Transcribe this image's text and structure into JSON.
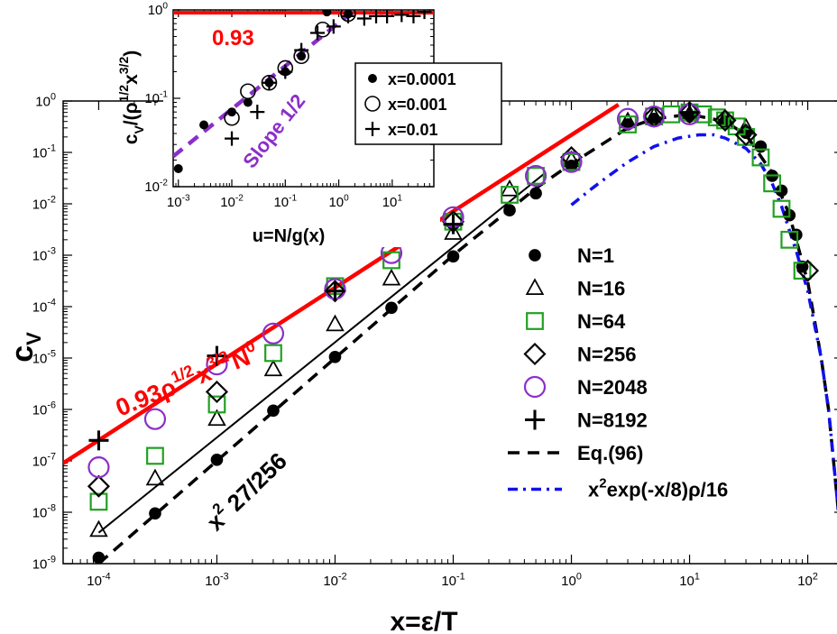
{
  "chart_data": [
    {
      "type": "scatter",
      "xscale": "log",
      "yscale": "log",
      "xlim": [
        5e-05,
        200
      ],
      "ylim": [
        1e-09,
        1
      ],
      "xlabel": "x=ε/T",
      "ylabel": "c",
      "ylabel_sub": "V",
      "xtick_exponents": [
        "-4",
        "-3",
        "-2",
        "-1",
        "0",
        "1",
        "2"
      ],
      "ytick_exponents": [
        "-9",
        "-8",
        "-7",
        "-6",
        "-5",
        "-4",
        "-3",
        "-2",
        "-1",
        "0"
      ],
      "series": [
        {
          "name": "N=1",
          "marker": "filled-circle",
          "color": "#000000",
          "points": [
            [
              0.0001,
              1.3e-09
            ],
            [
              0.0003,
              9.5e-09
            ],
            [
              0.001,
              1.05e-07
            ],
            [
              0.003,
              9.5e-07
            ],
            [
              0.01,
              1.05e-05
            ],
            [
              0.03,
              9.5e-05
            ],
            [
              0.1,
              0.00095
            ],
            [
              0.3,
              0.0075
            ],
            [
              0.5,
              0.016
            ],
            [
              1,
              0.055
            ],
            [
              3,
              0.35
            ],
            [
              5,
              0.45
            ],
            [
              10,
              0.5
            ],
            [
              20,
              0.4
            ],
            [
              30,
              0.24
            ],
            [
              40,
              0.13
            ],
            [
              50,
              0.035
            ],
            [
              60,
              0.018
            ],
            [
              70,
              0.006
            ],
            [
              80,
              0.0025
            ],
            [
              90,
              0.0006
            ]
          ]
        },
        {
          "name": "N=16",
          "marker": "triangle",
          "color": "#000000",
          "points": [
            [
              0.0001,
              4.5e-09
            ],
            [
              0.0003,
              4.5e-08
            ],
            [
              0.001,
              6.5e-07
            ],
            [
              0.003,
              6e-06
            ],
            [
              0.01,
              4.5e-05
            ],
            [
              0.03,
              0.00035
            ],
            [
              0.1,
              0.0027
            ],
            [
              0.3,
              0.019
            ],
            [
              1,
              0.07
            ],
            [
              3,
              0.4
            ],
            [
              5,
              0.5
            ],
            [
              10,
              0.55
            ],
            [
              20,
              0.45
            ],
            [
              30,
              0.3
            ]
          ]
        },
        {
          "name": "N=64",
          "marker": "square",
          "color": "#22a022",
          "points": [
            [
              0.0001,
              1.6e-08
            ],
            [
              0.0003,
              1.25e-07
            ],
            [
              0.001,
              1.25e-06
            ],
            [
              0.003,
              1.25e-05
            ],
            [
              0.01,
              0.00025
            ],
            [
              0.03,
              0.0008
            ],
            [
              0.1,
              0.0045
            ],
            [
              0.3,
              0.015
            ],
            [
              0.5,
              0.035
            ],
            [
              1,
              0.065
            ],
            [
              3,
              0.35
            ],
            [
              5,
              0.5
            ],
            [
              7,
              0.55
            ],
            [
              10,
              0.6
            ],
            [
              13,
              0.55
            ],
            [
              17,
              0.48
            ],
            [
              20,
              0.42
            ],
            [
              25,
              0.32
            ],
            [
              30,
              0.2
            ],
            [
              40,
              0.08
            ],
            [
              50,
              0.025
            ],
            [
              60,
              0.008
            ],
            [
              70,
              0.002
            ],
            [
              90,
              0.0005
            ]
          ]
        },
        {
          "name": "N=256",
          "marker": "diamond",
          "color": "#000000",
          "points": [
            [
              0.0001,
              3.2e-08
            ],
            [
              0.001,
              2.2e-06
            ],
            [
              0.01,
              0.0002
            ],
            [
              0.1,
              0.0045
            ],
            [
              1,
              0.08
            ],
            [
              5,
              0.5
            ],
            [
              10,
              0.6
            ],
            [
              20,
              0.42
            ],
            [
              30,
              0.22
            ],
            [
              100,
              0.0005
            ]
          ]
        },
        {
          "name": "N=2048",
          "marker": "circle",
          "color": "#8b2fc9",
          "points": [
            [
              0.0001,
              7.5e-08
            ],
            [
              0.0003,
              6.5e-07
            ],
            [
              0.001,
              7.5e-06
            ],
            [
              0.003,
              3e-05
            ],
            [
              0.01,
              0.00022
            ],
            [
              0.03,
              0.0011
            ],
            [
              0.1,
              0.0055
            ],
            [
              0.5,
              0.035
            ],
            [
              1,
              0.065
            ],
            [
              3,
              0.45
            ],
            [
              5,
              0.5
            ],
            [
              10,
              0.55
            ]
          ]
        },
        {
          "name": "N=8192",
          "marker": "plus",
          "color": "#000000",
          "points": [
            [
              0.0001,
              2.5e-07
            ],
            [
              0.001,
              1.1e-05
            ],
            [
              0.01,
              0.0002
            ],
            [
              0.1,
              0.004
            ],
            [
              10,
              0.6
            ]
          ]
        }
      ],
      "lines": [
        {
          "name": "0.93ρ^{1/2}x^{3/2}N^0 fit",
          "color": "#ff0000",
          "style": "solid",
          "points": [
            [
              5e-05,
              9e-08
            ],
            [
              2.5,
              0.85
            ]
          ]
        },
        {
          "name": "x^2 27/256",
          "color": "#000000",
          "style": "solid",
          "points": [
            [
              0.0001,
              4e-09
            ],
            [
              0.6,
              0.04
            ]
          ]
        },
        {
          "name": "Eq.(96)",
          "color": "#000000",
          "style": "dashed",
          "points": [
            [
              0.0001,
              1e-09
            ],
            [
              0.001,
              1e-07
            ],
            [
              0.01,
              1e-05
            ],
            [
              0.1,
              0.001
            ],
            [
              0.5,
              0.02
            ],
            [
              1,
              0.06
            ],
            [
              3,
              0.3
            ],
            [
              5,
              0.45
            ],
            [
              10,
              0.55
            ],
            [
              20,
              0.4
            ],
            [
              30,
              0.22
            ],
            [
              50,
              0.04
            ],
            [
              70,
              0.006
            ],
            [
              100,
              0.0003
            ],
            [
              130,
              1e-05
            ],
            [
              150,
              1e-06
            ],
            [
              170,
              5e-08
            ],
            [
              200,
              1e-09
            ]
          ]
        },
        {
          "name": "x^2exp(-x/8)ρ/16",
          "color": "#1010ee",
          "style": "dashdot",
          "points": [
            [
              1,
              0.0095
            ],
            [
              1.5,
              0.02
            ],
            [
              2,
              0.033
            ],
            [
              3,
              0.065
            ],
            [
              5,
              0.13
            ],
            [
              8,
              0.19
            ],
            [
              12,
              0.22
            ],
            [
              16,
              0.22
            ],
            [
              20,
              0.19
            ],
            [
              30,
              0.12
            ],
            [
              40,
              0.06
            ],
            [
              50,
              0.025
            ],
            [
              60,
              0.009
            ],
            [
              70,
              0.003
            ],
            [
              80,
              0.0012
            ],
            [
              100,
              0.0002
            ],
            [
              130,
              1e-05
            ],
            [
              150,
              1e-06
            ],
            [
              170,
              5e-08
            ],
            [
              200,
              1e-09
            ]
          ]
        }
      ],
      "annotations": {
        "fit_label": {
          "main": "0.93ρ",
          "s1": "1/2",
          "x": "x",
          "s2": "3/2",
          "n": "N",
          "s3": "0"
        },
        "slope_label": {
          "x": "x",
          "exp": "2",
          "rest": " 27/256"
        }
      },
      "legend": {
        "position": "bottom-right",
        "entries": [
          "N=1",
          "N=16",
          "N=64",
          "N=256",
          "N=2048",
          "N=8192",
          "Eq.(96)"
        ],
        "last_entry": {
          "pre": "x",
          "sup": "2",
          "post": "exp(-x/8)ρ/16"
        }
      }
    },
    {
      "type": "scatter",
      "role": "inset",
      "xscale": "log",
      "yscale": "log",
      "xlim": [
        0.0008,
        60
      ],
      "ylim": [
        0.01,
        1.0
      ],
      "xlabel": "u=N/g(x)",
      "ylabel": {
        "pre": "c",
        "sub": "V",
        "mid": "/(ρ",
        "s1": "1/2",
        "x": "x",
        "s2": "3/2",
        "post": ")"
      },
      "xtick_exponents": [
        "-3",
        "-2",
        "-1",
        "0",
        "1"
      ],
      "ytick_exponents": [
        "-2",
        "-1",
        "0"
      ],
      "series": [
        {
          "name": "x=0.0001",
          "marker": "filled-circle",
          "points": [
            [
              0.001,
              0.016
            ],
            [
              0.003,
              0.05
            ],
            [
              0.01,
              0.07
            ],
            [
              0.02,
              0.09
            ],
            [
              0.05,
              0.15
            ],
            [
              0.1,
              0.2
            ],
            [
              0.2,
              0.3
            ],
            [
              0.6,
              0.95
            ],
            [
              1.5,
              0.9
            ]
          ]
        },
        {
          "name": "x=0.001",
          "marker": "circle",
          "points": [
            [
              0.01,
              0.06
            ],
            [
              0.02,
              0.12
            ],
            [
              0.05,
              0.15
            ],
            [
              0.1,
              0.22
            ],
            [
              0.2,
              0.3
            ],
            [
              0.5,
              0.6
            ],
            [
              1.5,
              0.9
            ]
          ]
        },
        {
          "name": "x=0.01",
          "marker": "plus",
          "points": [
            [
              0.01,
              0.035
            ],
            [
              0.03,
              0.07
            ],
            [
              0.05,
              0.15
            ],
            [
              0.1,
              0.2
            ],
            [
              0.2,
              0.35
            ],
            [
              0.4,
              0.55
            ],
            [
              0.8,
              0.65
            ],
            [
              1.5,
              0.85
            ],
            [
              3,
              0.8
            ],
            [
              5,
              0.85
            ],
            [
              8,
              0.85
            ],
            [
              15,
              0.88
            ],
            [
              25,
              0.85
            ],
            [
              40,
              0.95
            ]
          ]
        }
      ],
      "lines": [
        {
          "name": "0.93",
          "color": "#ff0000",
          "style": "solid",
          "points": [
            [
              0.0008,
              0.93
            ],
            [
              60,
              0.93
            ]
          ]
        },
        {
          "name": "Slope 1/2",
          "color": "#8b2fc9",
          "style": "dashed",
          "points": [
            [
              0.0008,
              0.022
            ],
            [
              2,
              1.0
            ]
          ]
        }
      ],
      "annotations": {
        "level_label": "0.93",
        "slope_label": "Slope 1/2"
      },
      "legend": {
        "position": "top-right",
        "entries": [
          "x=0.0001",
          "x=0.001",
          "x=0.01"
        ]
      }
    }
  ]
}
